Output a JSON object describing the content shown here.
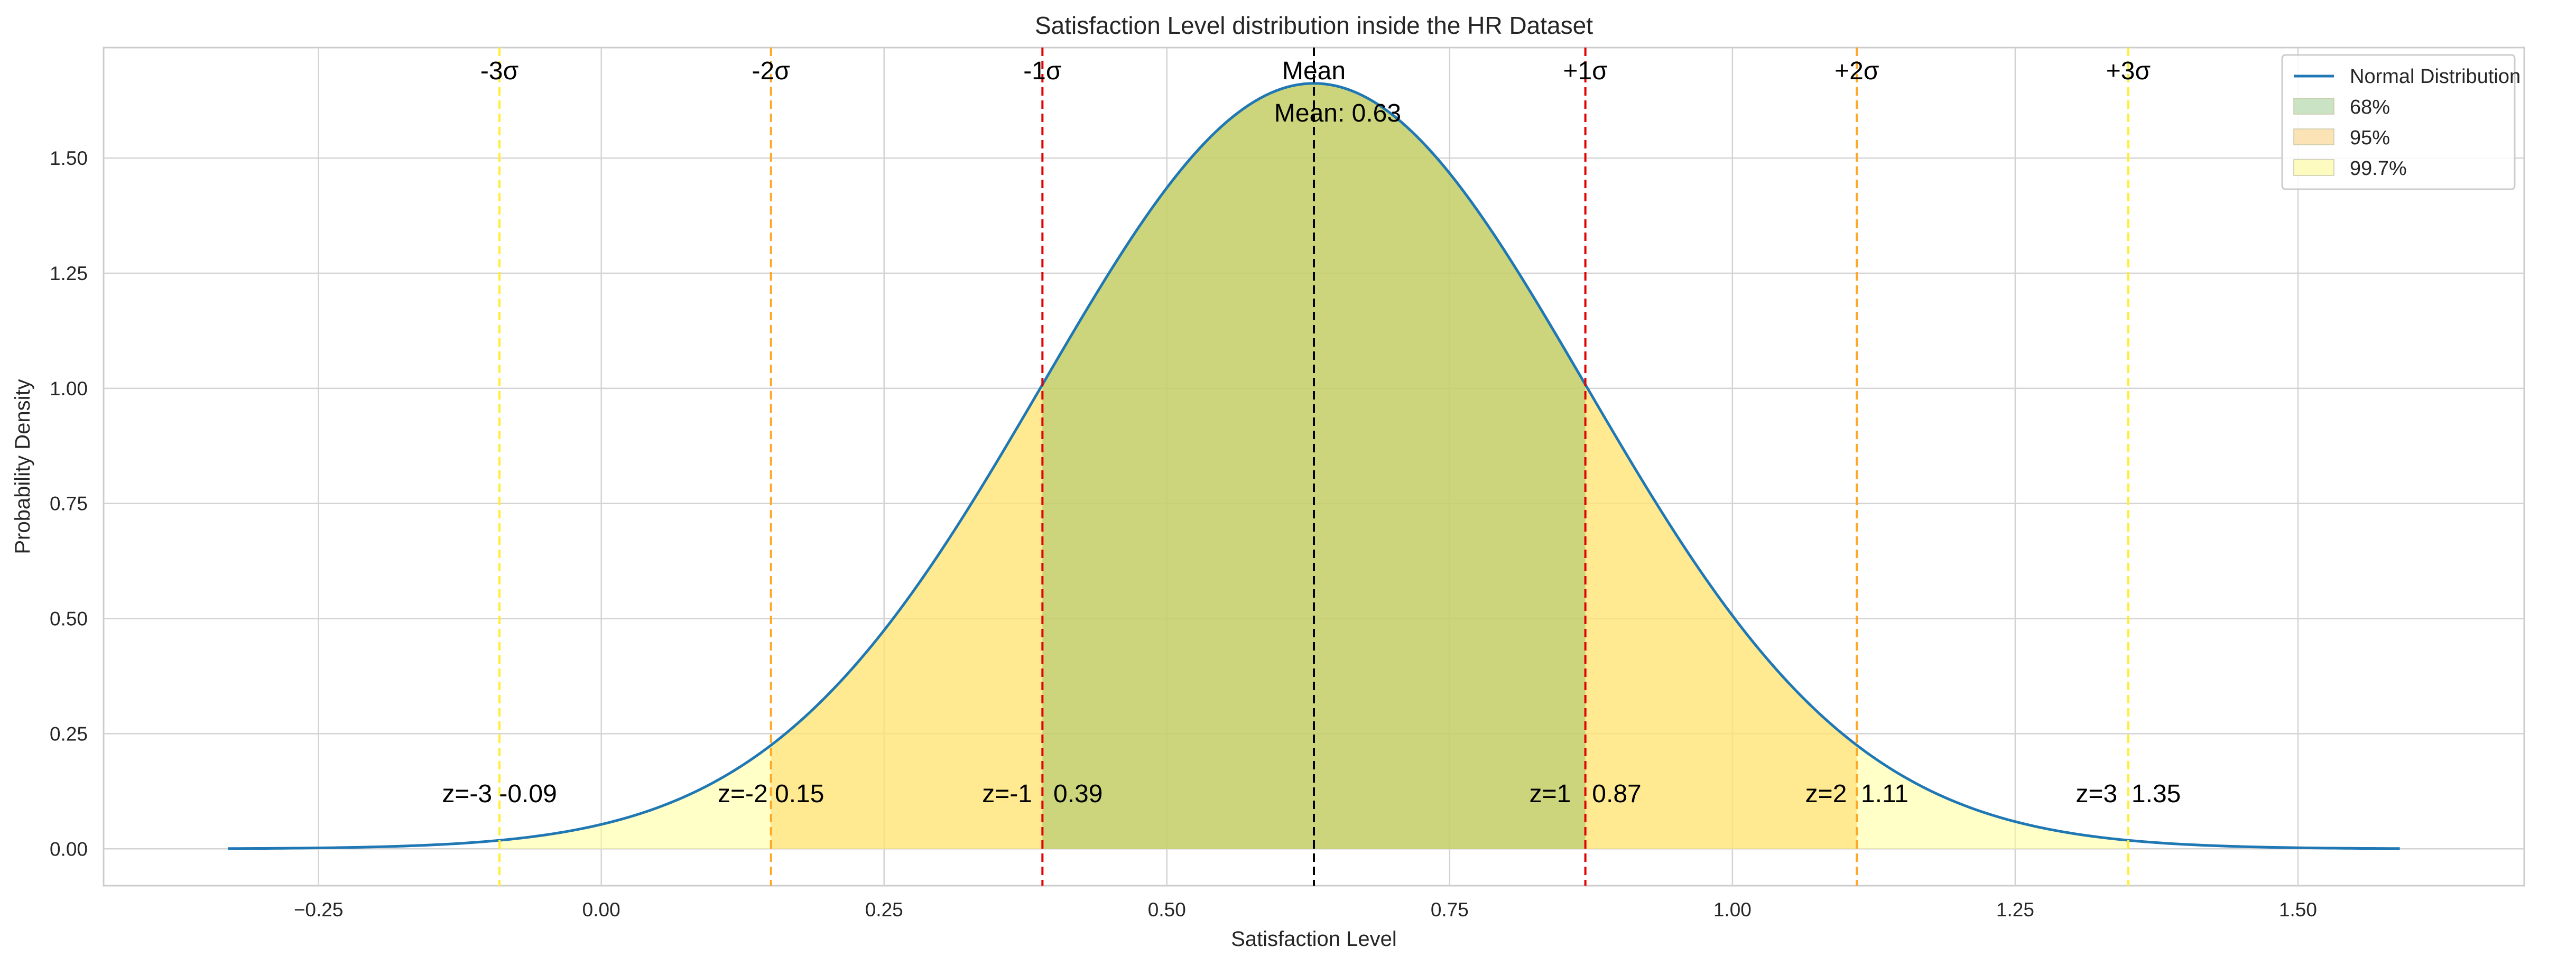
{
  "chart_data": {
    "type": "line",
    "title": "Satisfaction Level distribution inside the HR Dataset",
    "xlabel": "Satisfaction Level",
    "ylabel": "Probability Density",
    "xlim": [
      -0.44,
      1.7
    ],
    "ylim": [
      -0.08,
      1.74
    ],
    "xticks": [
      -0.25,
      0.0,
      0.25,
      0.5,
      0.75,
      1.0,
      1.25,
      1.5
    ],
    "xtick_labels": [
      "−0.25",
      "0.00",
      "0.25",
      "0.50",
      "0.75",
      "1.00",
      "1.25",
      "1.50"
    ],
    "yticks": [
      0.0,
      0.25,
      0.5,
      0.75,
      1.0,
      1.25,
      1.5
    ],
    "ytick_labels": [
      "0.00",
      "0.25",
      "0.50",
      "0.75",
      "1.00",
      "1.25",
      "1.50"
    ],
    "grid": true,
    "legend_position": "top-right",
    "series": [
      {
        "name": "Normal Distribution",
        "distribution": "normal",
        "mean": 0.63,
        "std": 0.24,
        "x_range": [
          -0.33,
          1.59
        ],
        "color": "#1f77b4"
      }
    ],
    "shaded_regions": [
      {
        "name": "99.7%",
        "range": [
          -0.09,
          1.35
        ],
        "color": "#ffff99"
      },
      {
        "name": "95%",
        "range": [
          0.15,
          1.11
        ],
        "color": "#ffd966"
      },
      {
        "name": "68%",
        "range": [
          0.39,
          0.87
        ],
        "color": "#8fbc5f"
      }
    ],
    "legend": [
      {
        "label": "Normal Distribution",
        "kind": "line",
        "color": "#1f77b4"
      },
      {
        "label": "68%",
        "kind": "patch",
        "color": "#c9e3c4"
      },
      {
        "label": "95%",
        "kind": "patch",
        "color": "#fbe3b6"
      },
      {
        "label": "99.7%",
        "kind": "patch",
        "color": "#fdfbc0"
      }
    ],
    "vlines": [
      {
        "x": -0.09,
        "label": "-3σ",
        "z_label": "z=-3 -0.09",
        "color": "#ffee33"
      },
      {
        "x": 0.15,
        "label": "-2σ",
        "z_label": "z=-2 0.15",
        "color": "#ffa726"
      },
      {
        "x": 0.39,
        "label": "-1σ",
        "z_label": "z=-1   0.39",
        "color": "#e00000"
      },
      {
        "x": 0.63,
        "label": "Mean",
        "z_label": "",
        "color": "#000000"
      },
      {
        "x": 0.87,
        "label": "+1σ",
        "z_label": "z=1   0.87",
        "color": "#e00000"
      },
      {
        "x": 1.11,
        "label": "+2σ",
        "z_label": "z=2  1.11",
        "color": "#ffa726"
      },
      {
        "x": 1.35,
        "label": "+3σ",
        "z_label": "z=3  1.35",
        "color": "#ffee33"
      }
    ],
    "mean_annotation": "Mean: 0.63"
  }
}
